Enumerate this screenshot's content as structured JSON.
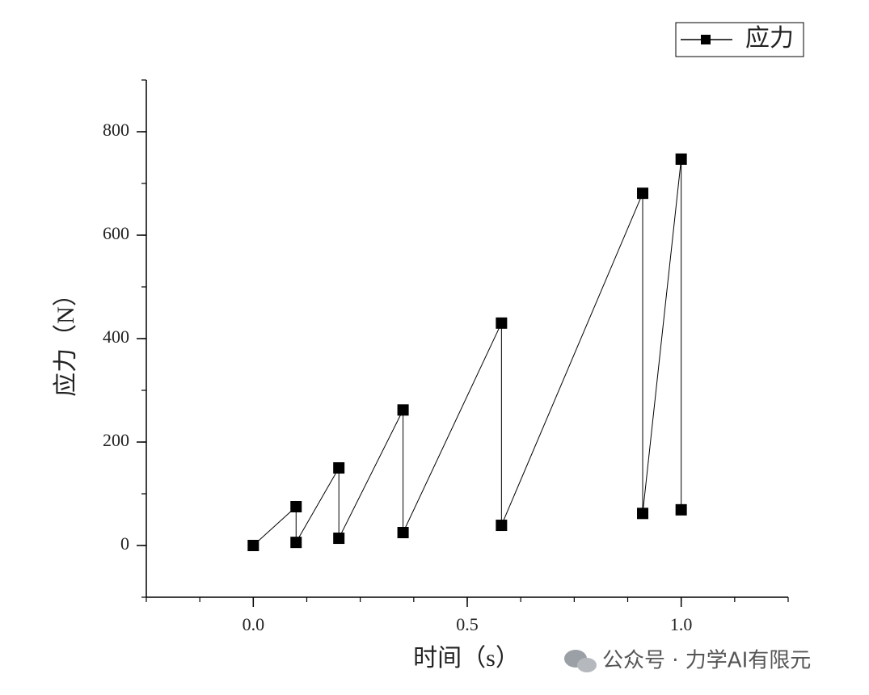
{
  "chart_data": {
    "type": "line",
    "x_label": "时间（s）",
    "y_label": "应力（N）",
    "x": [
      0,
      0.1,
      0.1,
      0.2,
      0.2,
      0.35,
      0.35,
      0.58,
      0.58,
      0.91,
      0.91,
      1.0,
      1.0
    ],
    "series": [
      {
        "name": "应力",
        "color": "#000000",
        "values": [
          0,
          75,
          6,
          150,
          14,
          262,
          25,
          430,
          39,
          681,
          62,
          747,
          69
        ]
      }
    ],
    "xlim": [
      -0.25,
      1.25
    ],
    "xticks": [
      {
        "value": 0,
        "label": "0.0"
      },
      0.5,
      {
        "value": 1,
        "label": "1.0"
      }
    ],
    "ylim": [
      -100,
      900
    ],
    "yticks": [
      0,
      200,
      400,
      600,
      800
    ],
    "legend": "upper-right",
    "watermark": "公众号 · 力学AI有限元"
  }
}
